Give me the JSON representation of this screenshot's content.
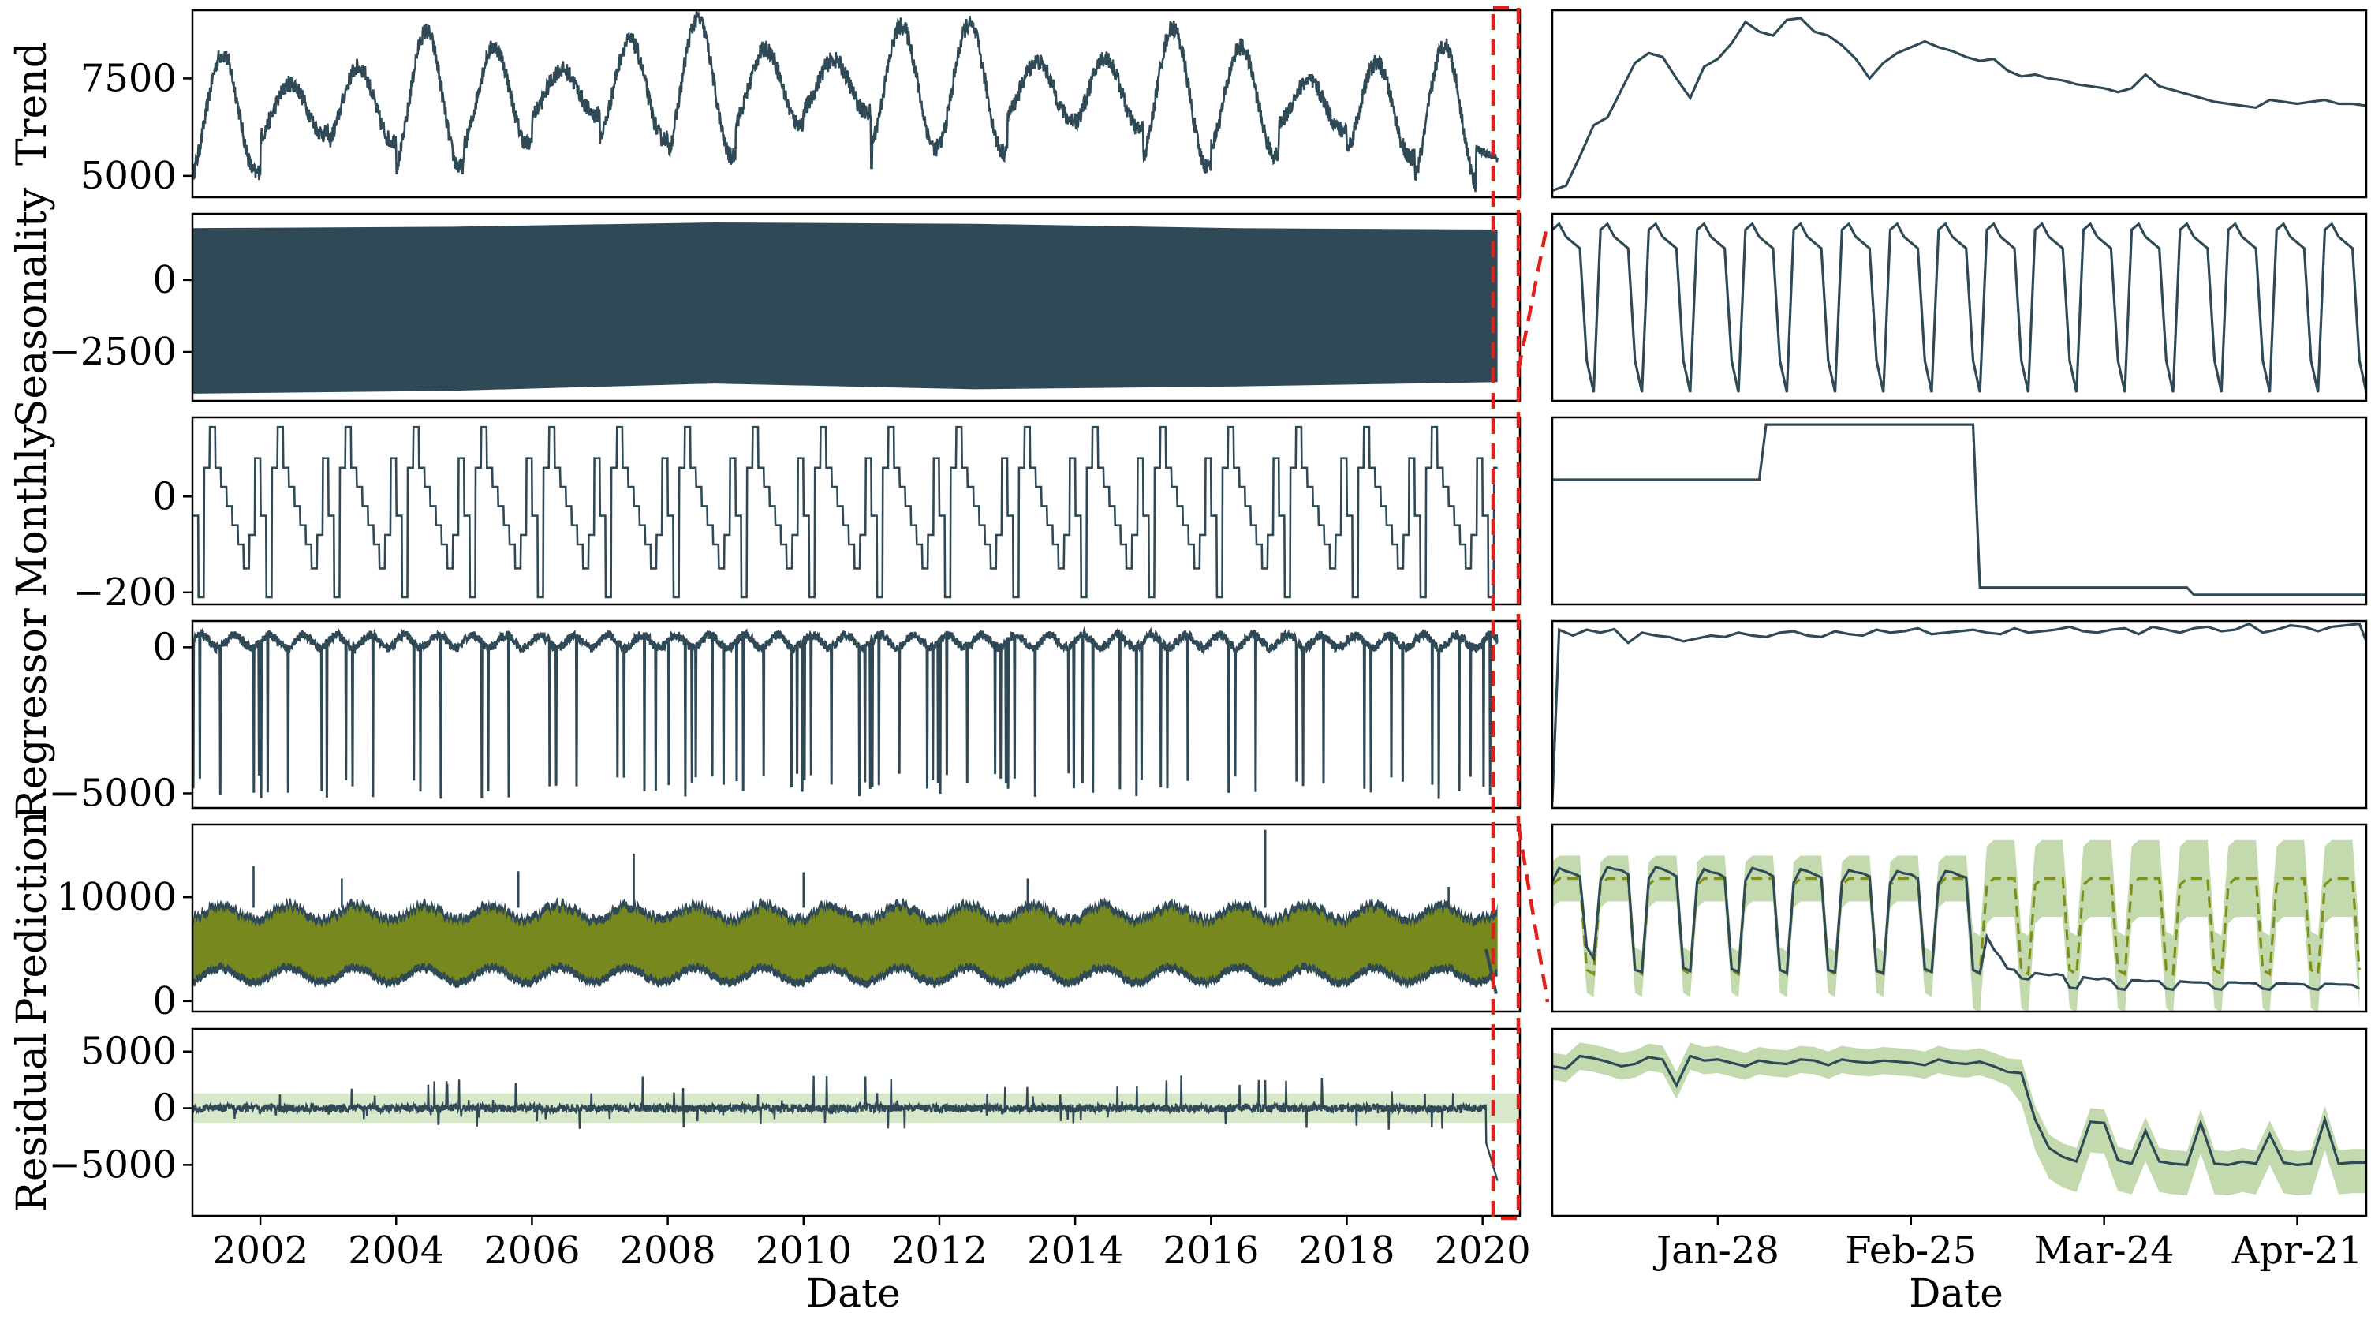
{
  "colors": {
    "series": "#2f4a56",
    "prediction": "#7f8f1a",
    "band": "#b9d3a0",
    "zoom": "#e0201b"
  },
  "chart_data": [
    {
      "panel": "left",
      "type": "line",
      "ylabel": "Trend",
      "xlim": [
        2001,
        2020.55
      ],
      "ylim": [
        4450,
        9250
      ],
      "yticks": [
        5000,
        7500
      ],
      "yticklabels": [
        "5000",
        "7500"
      ]
    },
    {
      "panel": "left",
      "type": "area",
      "ylabel": "Seasonality",
      "xlim": [
        2001,
        2020.55
      ],
      "ylim": [
        -4200,
        2300
      ],
      "yticks": [
        0,
        -2500
      ],
      "yticklabels": [
        "0",
        "−2500"
      ],
      "upper_envelope": [
        1800,
        1850,
        2000,
        1950,
        1800,
        1750
      ],
      "lower_envelope": [
        -3950,
        -3850,
        -3600,
        -3800,
        -3700,
        -3550
      ]
    },
    {
      "panel": "left",
      "type": "line",
      "ylabel": "Monthly",
      "xlim": [
        2001,
        2020.55
      ],
      "ylim": [
        -225,
        165
      ],
      "yticks": [
        0,
        -200
      ],
      "yticklabels": [
        "0",
        "−200"
      ]
    },
    {
      "panel": "left",
      "type": "line",
      "ylabel": "Regressor",
      "xlim": [
        2001,
        2020.55
      ],
      "ylim": [
        -5500,
        900
      ],
      "yticks": [
        0,
        -5000
      ],
      "yticklabels": [
        "0",
        "−5000"
      ]
    },
    {
      "panel": "left",
      "type": "line",
      "ylabel": "Prediction",
      "xlim": [
        2001,
        2020.55
      ],
      "ylim": [
        -1000,
        17000
      ],
      "yticks": [
        10000,
        0
      ],
      "yticklabels": [
        "10000",
        "0"
      ]
    },
    {
      "panel": "left",
      "type": "line",
      "ylabel": "Residual",
      "xlim": [
        2001,
        2020.55
      ],
      "ylim": [
        -9500,
        7000
      ],
      "yticks": [
        5000,
        0,
        -5000
      ],
      "yticklabels": [
        "5000",
        "0",
        "−5000"
      ],
      "xticks": [
        2002,
        2004,
        2006,
        2008,
        2010,
        2012,
        2014,
        2016,
        2018,
        2020
      ],
      "xticklabels": [
        "2002",
        "2004",
        "2006",
        "2008",
        "2010",
        "2012",
        "2014",
        "2016",
        "2018",
        "2020"
      ],
      "xlabel": "Date"
    },
    {
      "panel": "right",
      "type": "line",
      "ylabel": "Trend",
      "xlim": [
        0,
        118
      ],
      "ylim": [
        4450,
        9250
      ],
      "x": [
        0,
        2,
        4,
        6,
        8,
        10,
        12,
        14,
        16,
        18,
        20,
        22,
        24,
        26,
        28,
        30,
        32,
        34,
        36,
        38,
        40,
        42,
        44,
        46,
        48,
        50,
        52,
        54,
        56,
        58,
        60,
        62,
        64,
        66,
        68,
        70,
        72,
        74,
        76,
        78,
        80,
        82,
        84,
        86,
        88,
        90,
        92,
        94,
        96,
        98,
        100,
        102,
        104,
        106,
        108,
        110,
        112,
        114,
        116,
        118
      ],
      "y": [
        4620,
        4750,
        5500,
        6300,
        6500,
        7200,
        7900,
        8150,
        8050,
        7500,
        7000,
        7800,
        8000,
        8400,
        8950,
        8700,
        8600,
        9000,
        9050,
        8700,
        8600,
        8350,
        8000,
        7500,
        7900,
        8150,
        8300,
        8450,
        8300,
        8200,
        8050,
        7950,
        8000,
        7700,
        7550,
        7600,
        7500,
        7450,
        7350,
        7300,
        7250,
        7150,
        7250,
        7600,
        7300,
        7200,
        7100,
        7000,
        6900,
        6850,
        6800,
        6750,
        6950,
        6900,
        6850,
        6900,
        6950,
        6850,
        6850,
        6800
      ]
    },
    {
      "panel": "right",
      "type": "line",
      "ylabel": "Seasonality",
      "xlim": [
        0,
        118
      ],
      "ylim": [
        -4200,
        2300
      ],
      "weekly_pattern": [
        1750,
        1950,
        1500,
        1300,
        1100,
        -2800,
        -3900
      ],
      "weeks_shown": 17
    },
    {
      "panel": "right",
      "type": "line",
      "ylabel": "Monthly",
      "xlim": [
        0,
        118
      ],
      "ylim": [
        -225,
        165
      ],
      "x": [
        0,
        30,
        31,
        61,
        62,
        92,
        93,
        118
      ],
      "y": [
        35,
        35,
        150,
        150,
        -190,
        -190,
        -205,
        -205
      ]
    },
    {
      "panel": "right",
      "type": "line",
      "ylabel": "Regressor",
      "xlim": [
        0,
        118
      ],
      "ylim": [
        -5500,
        900
      ],
      "x": [
        0,
        1,
        3,
        5,
        7,
        9,
        11,
        13,
        15,
        17,
        19,
        21,
        23,
        25,
        27,
        29,
        31,
        33,
        35,
        37,
        39,
        41,
        43,
        45,
        47,
        49,
        51,
        53,
        55,
        57,
        59,
        61,
        63,
        65,
        67,
        69,
        71,
        73,
        75,
        77,
        79,
        81,
        83,
        85,
        87,
        89,
        91,
        93,
        95,
        97,
        99,
        101,
        103,
        105,
        107,
        109,
        111,
        113,
        115,
        117,
        118
      ],
      "y": [
        -5300,
        600,
        400,
        600,
        500,
        620,
        150,
        500,
        400,
        350,
        200,
        300,
        400,
        350,
        500,
        400,
        350,
        500,
        550,
        400,
        350,
        550,
        450,
        400,
        600,
        500,
        550,
        650,
        450,
        500,
        550,
        600,
        500,
        450,
        650,
        500,
        550,
        600,
        700,
        550,
        500,
        600,
        650,
        450,
        700,
        600,
        500,
        650,
        700,
        550,
        600,
        800,
        500,
        600,
        750,
        700,
        550,
        700,
        750,
        800,
        200
      ]
    },
    {
      "panel": "right",
      "type": "line",
      "ylabel": "Prediction",
      "xlim": [
        0,
        118
      ],
      "ylim": [
        -1000,
        17000
      ],
      "weekly_days": 7,
      "actual_weekly": [
        [
          11500,
          12800,
          12500,
          12300,
          12000,
          5200,
          4100
        ],
        [
          11600,
          12900,
          12700,
          12600,
          12200,
          3000,
          2800
        ],
        [
          11800,
          12900,
          12700,
          12400,
          12000,
          3200,
          2900
        ],
        [
          11500,
          12700,
          12400,
          12300,
          11900,
          3100,
          2800
        ],
        [
          11600,
          12800,
          12600,
          12400,
          12000,
          3000,
          2700
        ],
        [
          11400,
          12700,
          12500,
          12200,
          11900,
          3000,
          2800
        ],
        [
          11500,
          12600,
          12400,
          12300,
          12000,
          2900,
          2700
        ],
        [
          11400,
          12500,
          12300,
          12200,
          11800,
          3100,
          2800
        ],
        [
          11300,
          12500,
          12400,
          12100,
          11900,
          3000,
          2700
        ],
        [
          6200,
          5000,
          4200,
          3100,
          3000,
          2200,
          2100
        ],
        [
          2700,
          2600,
          2500,
          2600,
          2500,
          1300,
          1200
        ],
        [
          2300,
          2200,
          2100,
          2200,
          2000,
          1200,
          1100
        ],
        [
          2000,
          2000,
          1900,
          1950,
          1900,
          1200,
          1100
        ],
        [
          1900,
          1850,
          1800,
          1800,
          1750,
          1200,
          1100
        ],
        [
          1800,
          1800,
          1750,
          1750,
          1700,
          1200,
          1100
        ],
        [
          1700,
          1700,
          1650,
          1650,
          1600,
          1200,
          1100
        ],
        [
          1650,
          1650,
          1600,
          1600,
          1550,
          1200
        ]
      ],
      "predicted_weekly_high": 11800,
      "predicted_weekly_low": 3000,
      "band_halfwidth": 2200
    },
    {
      "panel": "right",
      "type": "line",
      "ylabel": "Residual",
      "xlim": [
        0,
        118
      ],
      "ylim": [
        -9500,
        7000
      ],
      "x": [
        0,
        2,
        4,
        6,
        8,
        10,
        12,
        14,
        16,
        18,
        20,
        22,
        24,
        26,
        28,
        30,
        32,
        34,
        36,
        38,
        40,
        42,
        44,
        46,
        48,
        50,
        52,
        54,
        56,
        58,
        60,
        62,
        64,
        66,
        68,
        70,
        72,
        74,
        76,
        78,
        80,
        82,
        84,
        86,
        88,
        90,
        92,
        94,
        96,
        98,
        100,
        102,
        104,
        106,
        108,
        110,
        112,
        114,
        116,
        118
      ],
      "y": [
        3700,
        3500,
        4600,
        4400,
        4100,
        3700,
        3900,
        4500,
        4300,
        2000,
        4600,
        4200,
        4300,
        4000,
        3700,
        4200,
        4000,
        3900,
        4300,
        4200,
        3800,
        4300,
        4100,
        4000,
        4200,
        4100,
        4000,
        3800,
        4300,
        4000,
        3900,
        4100,
        3700,
        3200,
        3100,
        -1000,
        -3500,
        -4300,
        -4700,
        -1200,
        -1300,
        -4600,
        -4900,
        -2000,
        -4700,
        -4900,
        -5000,
        -1300,
        -4900,
        -5000,
        -4700,
        -4900,
        -2300,
        -4800,
        -5000,
        -4900,
        -1000,
        -4900,
        -4800,
        -4800
      ]
    },
    {
      "panel": "right",
      "type": "line",
      "xticks": [
        24,
        52,
        80,
        108
      ],
      "xticklabels": [
        "Jan-28",
        "Feb-25",
        "Mar-24",
        "Apr-21"
      ],
      "xlabel": "Date"
    }
  ]
}
